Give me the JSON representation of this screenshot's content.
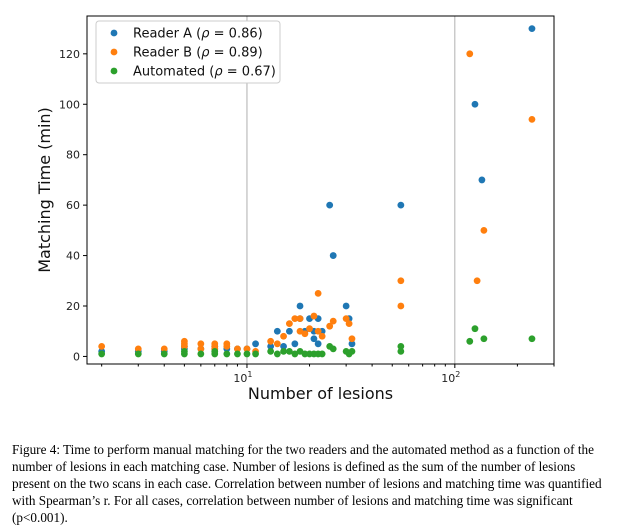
{
  "chart_data": {
    "type": "scatter",
    "xlabel": "Number of lesions",
    "ylabel": "Matching Time (min)",
    "xscale": "log",
    "xlim": [
      1.7,
      300
    ],
    "ylim": [
      -3,
      135
    ],
    "yticks": [
      0,
      20,
      40,
      60,
      80,
      100,
      120
    ],
    "xticks": [
      {
        "value": 10,
        "base": "10",
        "exp": "1"
      },
      {
        "value": 100,
        "base": "10",
        "exp": "2"
      }
    ],
    "grid": "major vertical lines at decades",
    "legend_position": "top-left",
    "series": [
      {
        "name": "Reader A (ρ = 0.86)",
        "name_prefix": "Reader A (",
        "name_symbol": "ρ",
        "name_suffix": " = 0.86)",
        "color": "#1f77b4",
        "points": [
          [
            2,
            2
          ],
          [
            3,
            2
          ],
          [
            4,
            2
          ],
          [
            5,
            3
          ],
          [
            5,
            4
          ],
          [
            6,
            3
          ],
          [
            7,
            3
          ],
          [
            7,
            4
          ],
          [
            8,
            3
          ],
          [
            9,
            3
          ],
          [
            10,
            3
          ],
          [
            11,
            5
          ],
          [
            13,
            4
          ],
          [
            14,
            10
          ],
          [
            15,
            4
          ],
          [
            16,
            10
          ],
          [
            17,
            5
          ],
          [
            18,
            15
          ],
          [
            18,
            20
          ],
          [
            19,
            10
          ],
          [
            20,
            15
          ],
          [
            21,
            7
          ],
          [
            21,
            10
          ],
          [
            22,
            5
          ],
          [
            22,
            15
          ],
          [
            23,
            10
          ],
          [
            25,
            60
          ],
          [
            26,
            40
          ],
          [
            30,
            20
          ],
          [
            31,
            15
          ],
          [
            32,
            5
          ],
          [
            55,
            60
          ],
          [
            125,
            100
          ],
          [
            135,
            70
          ],
          [
            235,
            130
          ]
        ]
      },
      {
        "name": "Reader B (ρ = 0.89)",
        "name_prefix": "Reader B (",
        "name_symbol": "ρ",
        "name_suffix": " = 0.89)",
        "color": "#ff7f0e",
        "points": [
          [
            2,
            4
          ],
          [
            3,
            3
          ],
          [
            4,
            3
          ],
          [
            5,
            4
          ],
          [
            5,
            5
          ],
          [
            5,
            6
          ],
          [
            6,
            3
          ],
          [
            6,
            5
          ],
          [
            7,
            3
          ],
          [
            7,
            4
          ],
          [
            7,
            5
          ],
          [
            8,
            4
          ],
          [
            8,
            5
          ],
          [
            9,
            3
          ],
          [
            10,
            3
          ],
          [
            11,
            2
          ],
          [
            13,
            6
          ],
          [
            14,
            5
          ],
          [
            15,
            8
          ],
          [
            16,
            13
          ],
          [
            17,
            15
          ],
          [
            18,
            10
          ],
          [
            18,
            15
          ],
          [
            19,
            9
          ],
          [
            20,
            11
          ],
          [
            21,
            16
          ],
          [
            22,
            25
          ],
          [
            22,
            10
          ],
          [
            23,
            8
          ],
          [
            25,
            12
          ],
          [
            26,
            14
          ],
          [
            30,
            15
          ],
          [
            31,
            13
          ],
          [
            32,
            7
          ],
          [
            55,
            30
          ],
          [
            55,
            20
          ],
          [
            118,
            120
          ],
          [
            128,
            30
          ],
          [
            138,
            50
          ],
          [
            235,
            94
          ]
        ]
      },
      {
        "name": "Automated (ρ = 0.67)",
        "name_prefix": "Automated (",
        "name_symbol": "ρ",
        "name_suffix": " = 0.67)",
        "color": "#2ca02c",
        "points": [
          [
            2,
            1
          ],
          [
            3,
            1
          ],
          [
            4,
            1
          ],
          [
            5,
            1
          ],
          [
            5,
            2
          ],
          [
            6,
            1
          ],
          [
            7,
            1
          ],
          [
            7,
            2
          ],
          [
            8,
            1
          ],
          [
            9,
            1
          ],
          [
            10,
            1
          ],
          [
            11,
            1
          ],
          [
            13,
            2
          ],
          [
            14,
            1
          ],
          [
            15,
            2
          ],
          [
            16,
            2
          ],
          [
            17,
            1
          ],
          [
            18,
            2
          ],
          [
            19,
            1
          ],
          [
            20,
            1
          ],
          [
            21,
            1
          ],
          [
            22,
            1
          ],
          [
            23,
            1
          ],
          [
            25,
            4
          ],
          [
            26,
            3
          ],
          [
            30,
            2
          ],
          [
            31,
            1
          ],
          [
            32,
            2
          ],
          [
            55,
            4
          ],
          [
            55,
            2
          ],
          [
            118,
            6
          ],
          [
            125,
            11
          ],
          [
            138,
            7
          ],
          [
            235,
            7
          ]
        ]
      }
    ]
  },
  "caption": "Figure 4: Time to perform manual matching for the two readers and the automated method as a function of the number of lesions in each matching case. Number of lesions is defined as the sum of the number of lesions present on the two scans in each case. Correlation between number of lesions and matching time was quantified with Spearman’s r. For all cases, correlation between number of lesions and matching time was significant (p<0.001)."
}
